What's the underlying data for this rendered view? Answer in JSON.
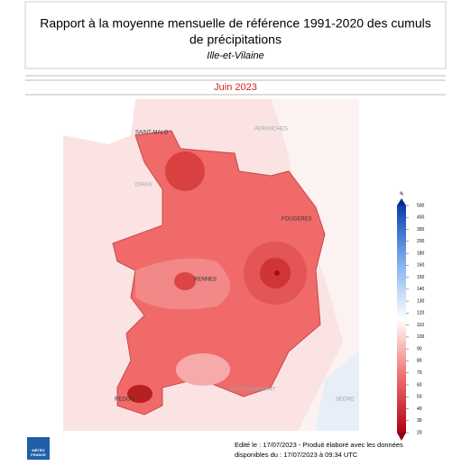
{
  "header": {
    "title_line1": "Rapport à la moyenne mensuelle de référence 1991-2020 des cumuls",
    "title_line2": "de précipitations",
    "subtitle": "Ille-et-Vilaine"
  },
  "period": "Juin 2023",
  "map": {
    "places": [
      "SAINT-MALO",
      "AVRANCHES",
      "DINAN",
      "FOUGERES",
      "RENNES",
      "REDON",
      "CHATEAUBRIANT",
      "SEGRE"
    ]
  },
  "colorbar": {
    "unit": "%",
    "ticks": [
      500,
      400,
      300,
      200,
      180,
      160,
      150,
      140,
      130,
      120,
      110,
      100,
      90,
      80,
      70,
      60,
      50,
      40,
      30,
      20
    ]
  },
  "footer": {
    "line1": "Edité le : 17/07/2023 - Produit élaboré avec les données",
    "line2": "disponibles du : 17/07/2023 à 09:34 UTC"
  },
  "logo": [
    "MÉTÉO",
    "FRANCE"
  ]
}
